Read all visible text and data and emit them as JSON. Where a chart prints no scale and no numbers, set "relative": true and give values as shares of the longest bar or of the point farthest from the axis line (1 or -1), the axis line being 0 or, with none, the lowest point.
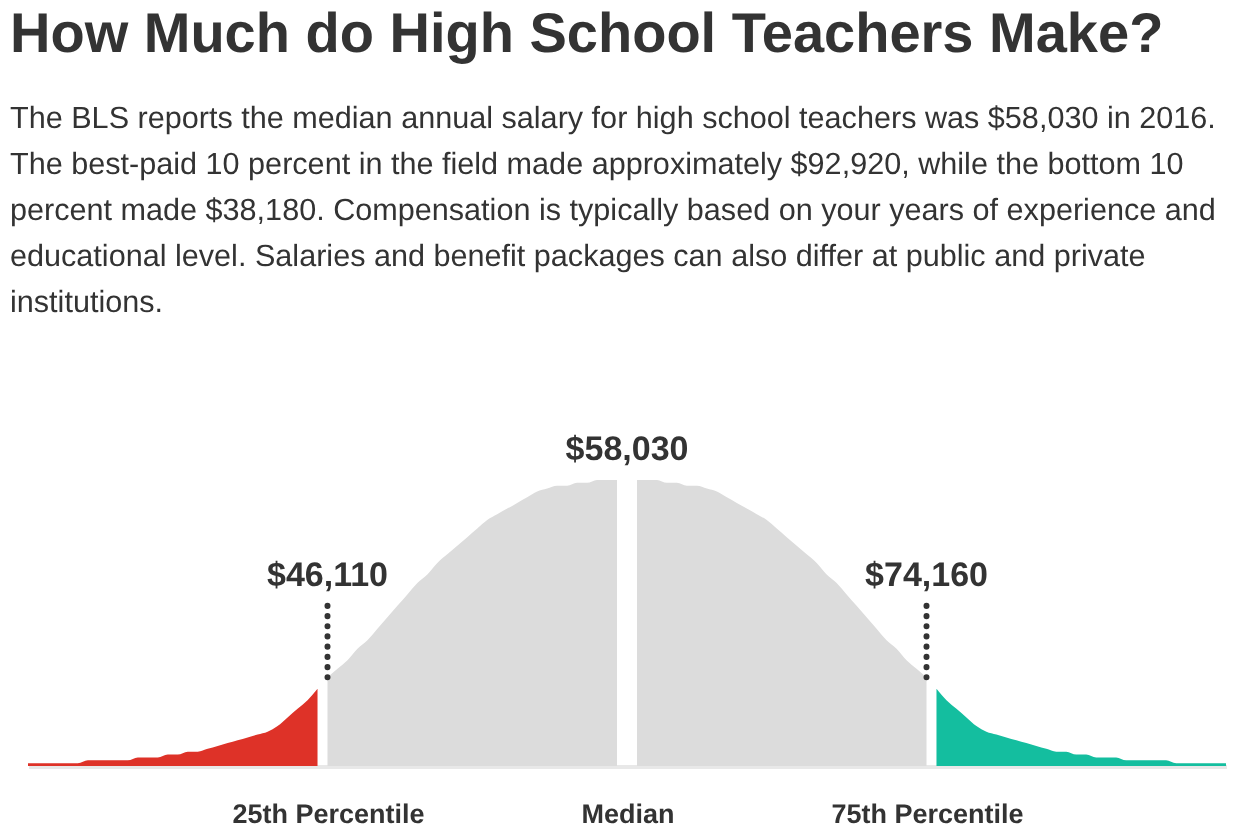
{
  "chart_data": {
    "type": "area",
    "title": "How Much do High School Teachers Make?",
    "subtitle": "The BLS reports the median annual salary for high school teachers was $58,030 in 2016. The best-paid 10 percent in the field made approximately $92,920, while the bottom 10 percent made $38,180. Compensation is typically based on your years of experience and educational level. Salaries and benefit packages can also differ at public and private institutions.",
    "relative": true,
    "categories": [
      null,
      null,
      null,
      null,
      null,
      null,
      null,
      null,
      null,
      null,
      null,
      null,
      null,
      null,
      null,
      null,
      null,
      null,
      null,
      null,
      null,
      null,
      null,
      null,
      null,
      null,
      null,
      null,
      null,
      null,
      "25th Percentile",
      null,
      null,
      null,
      null,
      null,
      null,
      null,
      null,
      null,
      null,
      null,
      null,
      null,
      null,
      null,
      null,
      null,
      null,
      null,
      null,
      null,
      null,
      null,
      null,
      null,
      null,
      null,
      null,
      null,
      "Median",
      null,
      null,
      null,
      null,
      null,
      null,
      null,
      null,
      null,
      null,
      null,
      null,
      null,
      null,
      null,
      null,
      null,
      null,
      null,
      null,
      null,
      null,
      null,
      null,
      null,
      null,
      null,
      null,
      null,
      "75th Percentile",
      null,
      null,
      null,
      null,
      null,
      null,
      null,
      null,
      null,
      null,
      null,
      null,
      null,
      null,
      null,
      null,
      null,
      null,
      null,
      null,
      null,
      null,
      null,
      null,
      null,
      null,
      null,
      null,
      null,
      null
    ],
    "series": [
      {
        "color": "#de3228",
        "values": [
          0.01,
          0.01,
          0.01,
          0.01,
          0.01,
          0.01,
          0.02,
          0.02,
          0.02,
          0.02,
          0.02,
          0.03,
          0.03,
          0.03,
          0.04,
          0.04,
          0.05,
          0.05,
          0.06,
          0.07,
          0.08,
          0.09,
          0.1,
          0.11,
          0.12,
          0.14,
          0.17,
          0.2,
          0.23,
          0.27,
          null,
          null,
          null,
          null,
          null,
          null,
          null,
          null,
          null,
          null,
          null,
          null,
          null,
          null,
          null,
          null,
          null,
          null,
          null,
          null,
          null,
          null,
          null,
          null,
          null,
          null,
          null,
          null,
          null,
          null,
          null,
          null,
          null,
          null,
          null,
          null,
          null,
          null,
          null,
          null,
          null,
          null,
          null,
          null,
          null,
          null,
          null,
          null,
          null,
          null,
          null,
          null,
          null,
          null,
          null,
          null,
          null,
          null,
          null,
          null,
          null,
          null,
          null,
          null,
          null,
          null,
          null,
          null,
          null,
          null,
          null,
          null,
          null,
          null,
          null,
          null,
          null,
          null,
          null,
          null,
          null,
          null,
          null,
          null,
          null,
          null,
          null,
          null,
          null,
          null,
          null
        ]
      },
      {
        "color": "#dcdcdc",
        "values": [
          null,
          null,
          null,
          null,
          null,
          null,
          null,
          null,
          null,
          null,
          null,
          null,
          null,
          null,
          null,
          null,
          null,
          null,
          null,
          null,
          null,
          null,
          null,
          null,
          null,
          null,
          null,
          null,
          null,
          null,
          0.31,
          0.34,
          0.37,
          0.41,
          0.44,
          0.48,
          0.52,
          0.56,
          0.6,
          0.64,
          0.67,
          0.71,
          0.74,
          0.77,
          0.8,
          0.83,
          0.86,
          0.88,
          0.9,
          0.92,
          0.94,
          0.96,
          0.97,
          0.98,
          0.98,
          0.99,
          0.99,
          1,
          1,
          1,
          null,
          null,
          null,
          null,
          null,
          null,
          null,
          null,
          null,
          null,
          null,
          null,
          null,
          null,
          null,
          null,
          null,
          null,
          null,
          null,
          null,
          null,
          null,
          null,
          null,
          null,
          null,
          null,
          null,
          null,
          null,
          null,
          null,
          null,
          null,
          null,
          null,
          null,
          null,
          null,
          null,
          null,
          null,
          null,
          null,
          null,
          null,
          null,
          null,
          null,
          null,
          null,
          null,
          null,
          null,
          null,
          null,
          null,
          null,
          null,
          null
        ]
      },
      {
        "color": "#dcdcdc",
        "values": [
          null,
          null,
          null,
          null,
          null,
          null,
          null,
          null,
          null,
          null,
          null,
          null,
          null,
          null,
          null,
          null,
          null,
          null,
          null,
          null,
          null,
          null,
          null,
          null,
          null,
          null,
          null,
          null,
          null,
          null,
          null,
          null,
          null,
          null,
          null,
          null,
          null,
          null,
          null,
          null,
          null,
          null,
          null,
          null,
          null,
          null,
          null,
          null,
          null,
          null,
          null,
          null,
          null,
          null,
          null,
          null,
          null,
          null,
          null,
          null,
          null,
          1,
          1,
          1,
          0.99,
          0.99,
          0.98,
          0.98,
          0.97,
          0.96,
          0.94,
          0.92,
          0.9,
          0.88,
          0.86,
          0.83,
          0.8,
          0.77,
          0.74,
          0.71,
          0.67,
          0.64,
          0.6,
          0.56,
          0.52,
          0.48,
          0.44,
          0.41,
          0.37,
          0.34,
          0.31,
          null,
          null,
          null,
          null,
          null,
          null,
          null,
          null,
          null,
          null,
          null,
          null,
          null,
          null,
          null,
          null,
          null,
          null,
          null,
          null,
          null,
          null,
          null,
          null,
          null,
          null,
          null,
          null,
          null,
          null
        ]
      },
      {
        "color": "#14be9f",
        "values": [
          null,
          null,
          null,
          null,
          null,
          null,
          null,
          null,
          null,
          null,
          null,
          null,
          null,
          null,
          null,
          null,
          null,
          null,
          null,
          null,
          null,
          null,
          null,
          null,
          null,
          null,
          null,
          null,
          null,
          null,
          null,
          null,
          null,
          null,
          null,
          null,
          null,
          null,
          null,
          null,
          null,
          null,
          null,
          null,
          null,
          null,
          null,
          null,
          null,
          null,
          null,
          null,
          null,
          null,
          null,
          null,
          null,
          null,
          null,
          null,
          null,
          null,
          null,
          null,
          null,
          null,
          null,
          null,
          null,
          null,
          null,
          null,
          null,
          null,
          null,
          null,
          null,
          null,
          null,
          null,
          null,
          null,
          null,
          null,
          null,
          null,
          null,
          null,
          null,
          null,
          null,
          0.27,
          0.23,
          0.2,
          0.17,
          0.14,
          0.12,
          0.11,
          0.1,
          0.09,
          0.08,
          0.07,
          0.06,
          0.05,
          0.05,
          0.04,
          0.04,
          0.03,
          0.03,
          0.03,
          0.02,
          0.02,
          0.02,
          0.02,
          0.02,
          0.01,
          0.01,
          0.01,
          0.01,
          0.01,
          0.01
        ]
      }
    ],
    "annotations": [
      {
        "text": "$46,110",
        "x": "25th Percentile",
        "y": 0.31
      },
      {
        "text": "$58,030",
        "x": "Median",
        "y": 1
      },
      {
        "text": "$74,160",
        "x": "75th Percentile",
        "y": 0.31
      }
    ]
  }
}
